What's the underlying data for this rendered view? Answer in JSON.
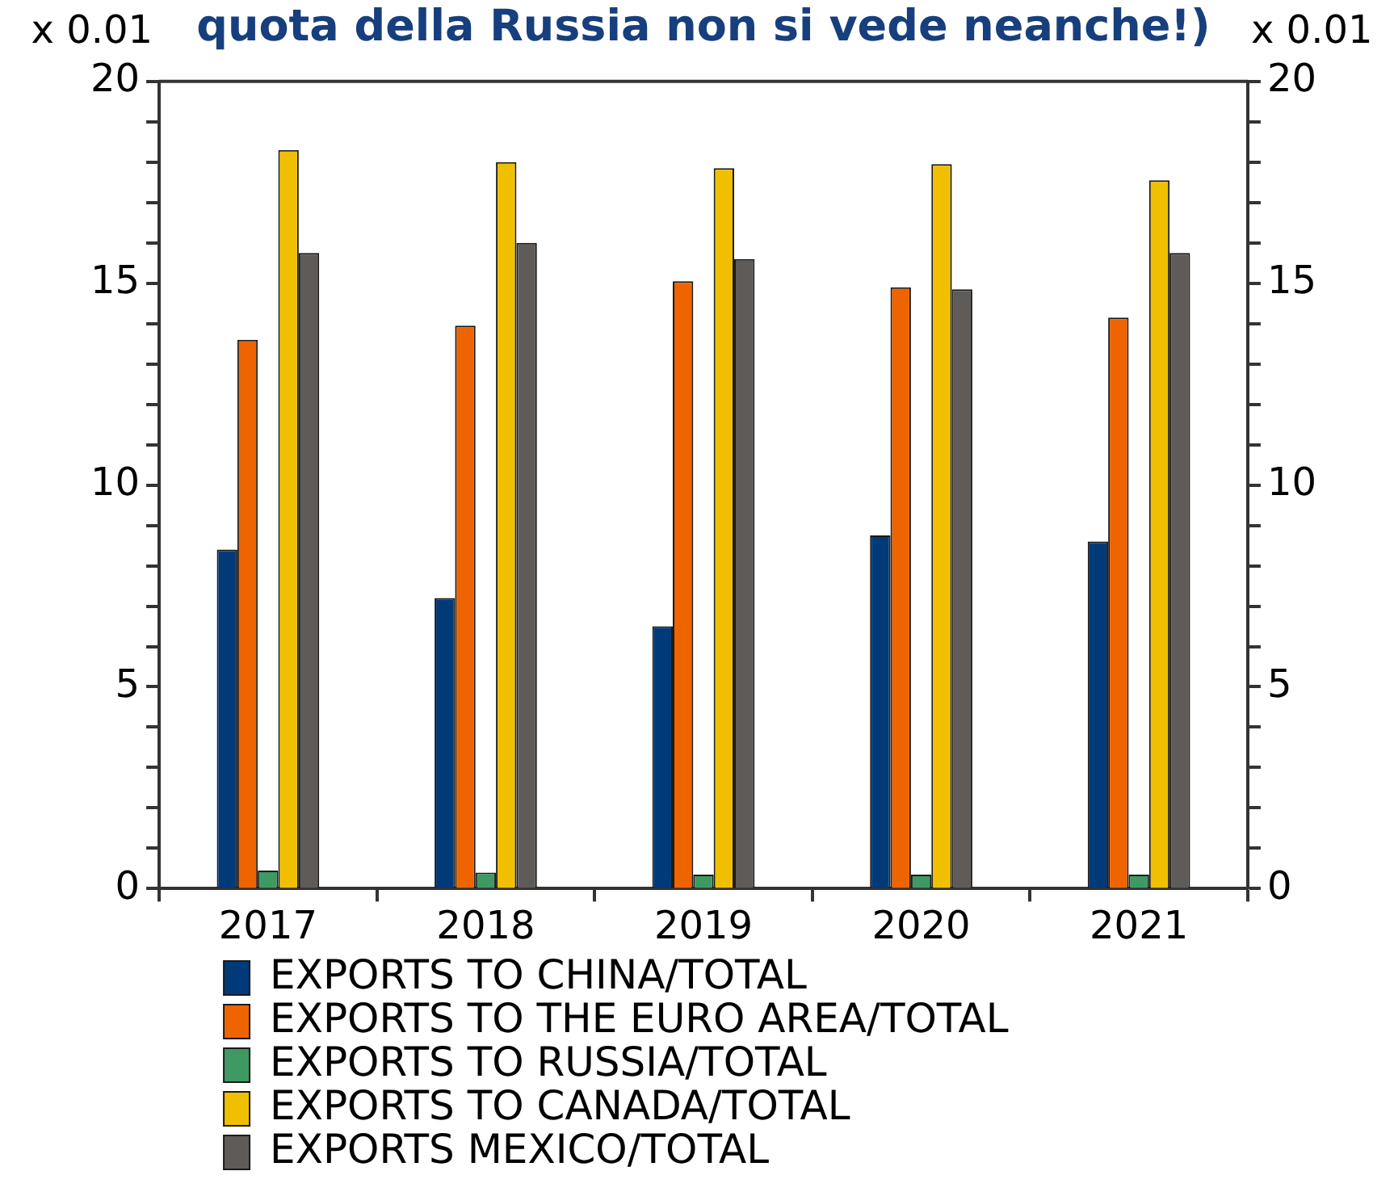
{
  "chart_data": {
    "type": "bar",
    "title": "quota della Russia non si vede neanche!)",
    "ylabel": "x 0.01",
    "y2label": "x 0.01",
    "categories": [
      "2017",
      "2018",
      "2019",
      "2020",
      "2021"
    ],
    "series": [
      {
        "name": "EXPORTS TO CHINA/TOTAL",
        "color": "#003a78",
        "values": [
          8.4,
          7.2,
          6.5,
          8.75,
          8.6
        ]
      },
      {
        "name": "EXPORTS TO THE EURO AREA/TOTAL",
        "color": "#ee6400",
        "values": [
          13.6,
          13.95,
          15.05,
          14.9,
          14.15
        ]
      },
      {
        "name": "EXPORTS TO RUSSIA/TOTAL",
        "color": "#3e9a62",
        "values": [
          0.45,
          0.4,
          0.35,
          0.35,
          0.35
        ]
      },
      {
        "name": "EXPORTS TO CANADA/TOTAL",
        "color": "#f0c000",
        "values": [
          18.3,
          18.0,
          17.85,
          17.95,
          17.55
        ]
      },
      {
        "name": "EXPORTS MEXICO/TOTAL",
        "color": "#5f5b58",
        "values": [
          15.75,
          16.0,
          15.6,
          14.85,
          15.75
        ]
      }
    ],
    "ylim": [
      0,
      20
    ],
    "yticks": [
      0,
      {
        "value": 1,
        "label": null
      },
      {
        "value": 2,
        "label": null
      },
      {
        "value": 3,
        "label": null
      },
      {
        "value": 4,
        "label": null
      },
      5,
      {
        "value": 6,
        "label": null
      },
      {
        "value": 7,
        "label": null
      },
      {
        "value": 8,
        "label": null
      },
      {
        "value": 9,
        "label": null
      },
      10,
      {
        "value": 11,
        "label": null
      },
      {
        "value": 12,
        "label": null
      },
      {
        "value": 13,
        "label": null
      },
      {
        "value": 14,
        "label": null
      },
      15,
      {
        "value": 16,
        "label": null
      },
      {
        "value": 17,
        "label": null
      },
      {
        "value": 18,
        "label": null
      },
      {
        "value": 19,
        "label": null
      },
      20
    ],
    "y2lim": [
      0,
      20
    ],
    "y2ticks": [
      0,
      {
        "value": 1,
        "label": null
      },
      {
        "value": 2,
        "label": null
      },
      {
        "value": 3,
        "label": null
      },
      {
        "value": 4,
        "label": null
      },
      5,
      {
        "value": 6,
        "label": null
      },
      {
        "value": 7,
        "label": null
      },
      {
        "value": 8,
        "label": null
      },
      {
        "value": 9,
        "label": null
      },
      10,
      {
        "value": 11,
        "label": null
      },
      {
        "value": 12,
        "label": null
      },
      {
        "value": 13,
        "label": null
      },
      {
        "value": 14,
        "label": null
      },
      15,
      {
        "value": 16,
        "label": null
      },
      {
        "value": 17,
        "label": null
      },
      {
        "value": 18,
        "label": null
      },
      {
        "value": 19,
        "label": null
      },
      20
    ],
    "grid": false,
    "legend": "bottom"
  }
}
